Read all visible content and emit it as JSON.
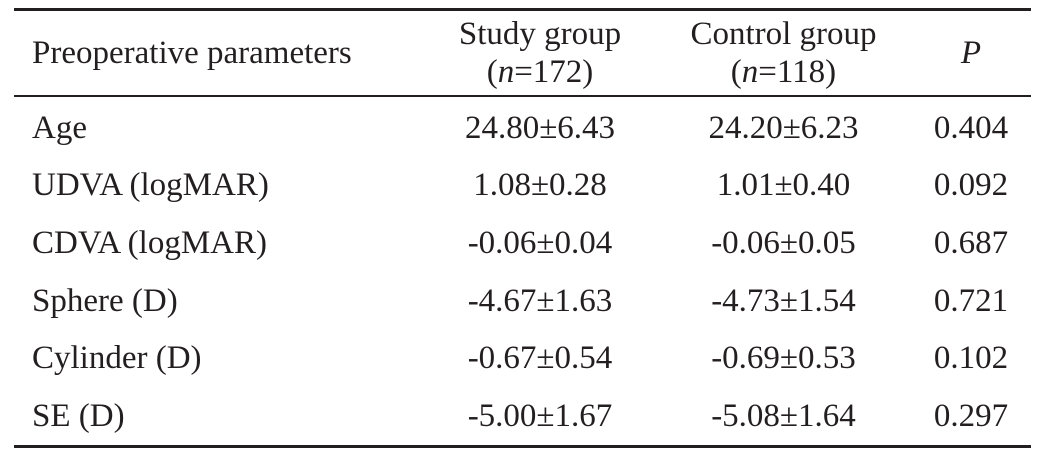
{
  "table": {
    "headers": {
      "parameter": "Preoperative parameters",
      "study": {
        "line1": "Study group",
        "n_prefix": "(",
        "n_var": "n",
        "n_suffix": "=172)"
      },
      "control": {
        "line1": "Control group",
        "n_prefix": "(",
        "n_var": "n",
        "n_suffix": "=118)"
      },
      "p": "P"
    },
    "rows": [
      {
        "parameter": "Age",
        "study": "24.80±6.43",
        "control": "24.20±6.23",
        "p": "0.404"
      },
      {
        "parameter": "UDVA (logMAR)",
        "study": "1.08±0.28",
        "control": "1.01±0.40",
        "p": "0.092"
      },
      {
        "parameter": "CDVA (logMAR)",
        "study": "-0.06±0.04",
        "control": "-0.06±0.05",
        "p": "0.687"
      },
      {
        "parameter": "Sphere (D)",
        "study": "-4.67±1.63",
        "control": "-4.73±1.54",
        "p": "0.721"
      },
      {
        "parameter": "Cylinder (D)",
        "study": "-0.67±0.54",
        "control": "-0.69±0.53",
        "p": "0.102"
      },
      {
        "parameter": "SE (D)",
        "study": "-5.00±1.67",
        "control": "-5.08±1.64",
        "p": "0.297"
      }
    ]
  }
}
